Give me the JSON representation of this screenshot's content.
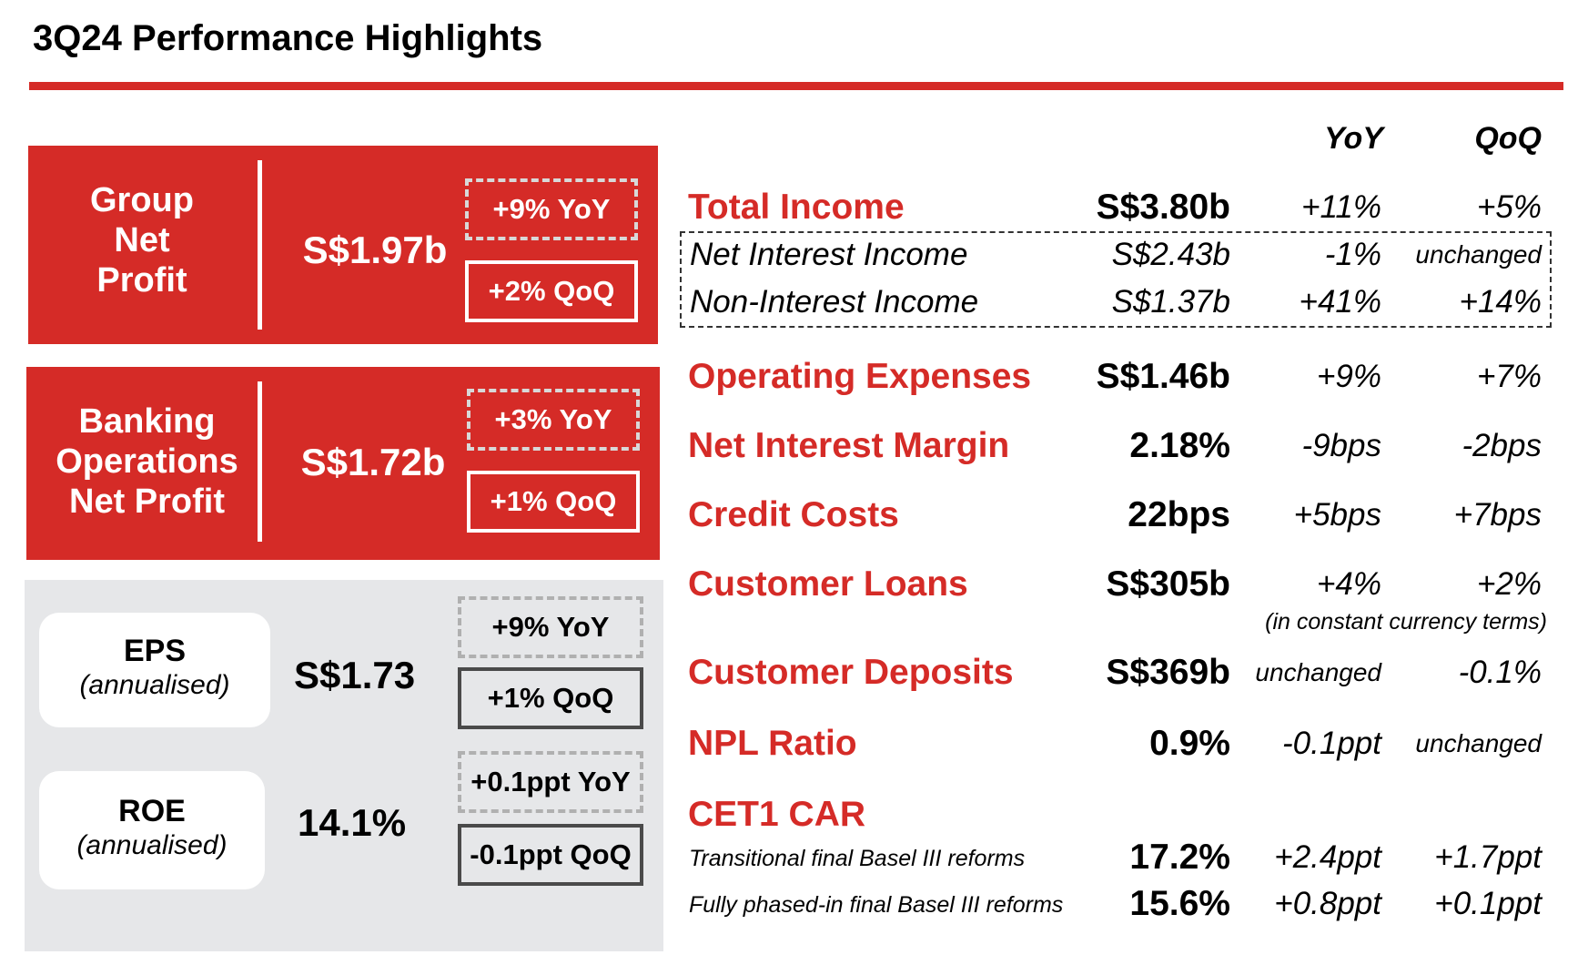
{
  "title": "3Q24 Performance Highlights",
  "colors": {
    "accent": "#d52b27",
    "grey_panel": "#e6e7e9"
  },
  "left_panel": {
    "group_net_profit": {
      "label_lines": [
        "Group",
        "Net",
        "Profit"
      ],
      "value": "S$1.97b",
      "yoy": "+9% YoY",
      "qoq": "+2% QoQ"
    },
    "banking_ops_net_profit": {
      "label_lines": [
        "Banking",
        "Operations",
        "Net Profit"
      ],
      "value": "S$1.72b",
      "yoy": "+3% YoY",
      "qoq": "+1% QoQ"
    },
    "eps": {
      "label": "EPS",
      "sublabel": "(annualised)",
      "value": "S$1.73",
      "yoy": "+9% YoY",
      "qoq": "+1% QoQ"
    },
    "roe": {
      "label": "ROE",
      "sublabel": "(annualised)",
      "value": "14.1%",
      "yoy": "+0.1ppt YoY",
      "qoq": "-0.1ppt QoQ"
    }
  },
  "table": {
    "headers": {
      "yoy": "YoY",
      "qoq": "QoQ"
    },
    "total_income": {
      "label": "Total Income",
      "value": "S$3.80b",
      "yoy": "+11%",
      "qoq": "+5%"
    },
    "net_interest_income": {
      "label": "Net Interest Income",
      "value": "S$2.43b",
      "yoy": "-1%",
      "qoq": "unchanged"
    },
    "non_interest_income": {
      "label": "Non-Interest Income",
      "value": "S$1.37b",
      "yoy": "+41%",
      "qoq": "+14%"
    },
    "operating_expenses": {
      "label": "Operating Expenses",
      "value": "S$1.46b",
      "yoy": "+9%",
      "qoq": "+7%"
    },
    "net_interest_margin": {
      "label": "Net Interest Margin",
      "value": "2.18%",
      "yoy": "-9bps",
      "qoq": "-2bps"
    },
    "credit_costs": {
      "label": "Credit Costs",
      "value": "22bps",
      "yoy": "+5bps",
      "qoq": "+7bps"
    },
    "customer_loans": {
      "label": "Customer Loans",
      "value": "S$305b",
      "yoy": "+4%",
      "qoq": "+2%",
      "note": "(in constant currency terms)"
    },
    "customer_deposits": {
      "label": "Customer Deposits",
      "value": "S$369b",
      "yoy": "unchanged",
      "qoq": "-0.1%"
    },
    "npl_ratio": {
      "label": "NPL Ratio",
      "value": "0.9%",
      "yoy": "-0.1ppt",
      "qoq": "unchanged"
    },
    "cet1_car": {
      "label": "CET1 CAR",
      "transitional": {
        "label": "Transitional final Basel III reforms",
        "value": "17.2%",
        "yoy": "+2.4ppt",
        "qoq": "+1.7ppt"
      },
      "fully_phased": {
        "label": "Fully phased-in final Basel III reforms",
        "value": "15.6%",
        "yoy": "+0.8ppt",
        "qoq": "+0.1ppt"
      }
    }
  }
}
